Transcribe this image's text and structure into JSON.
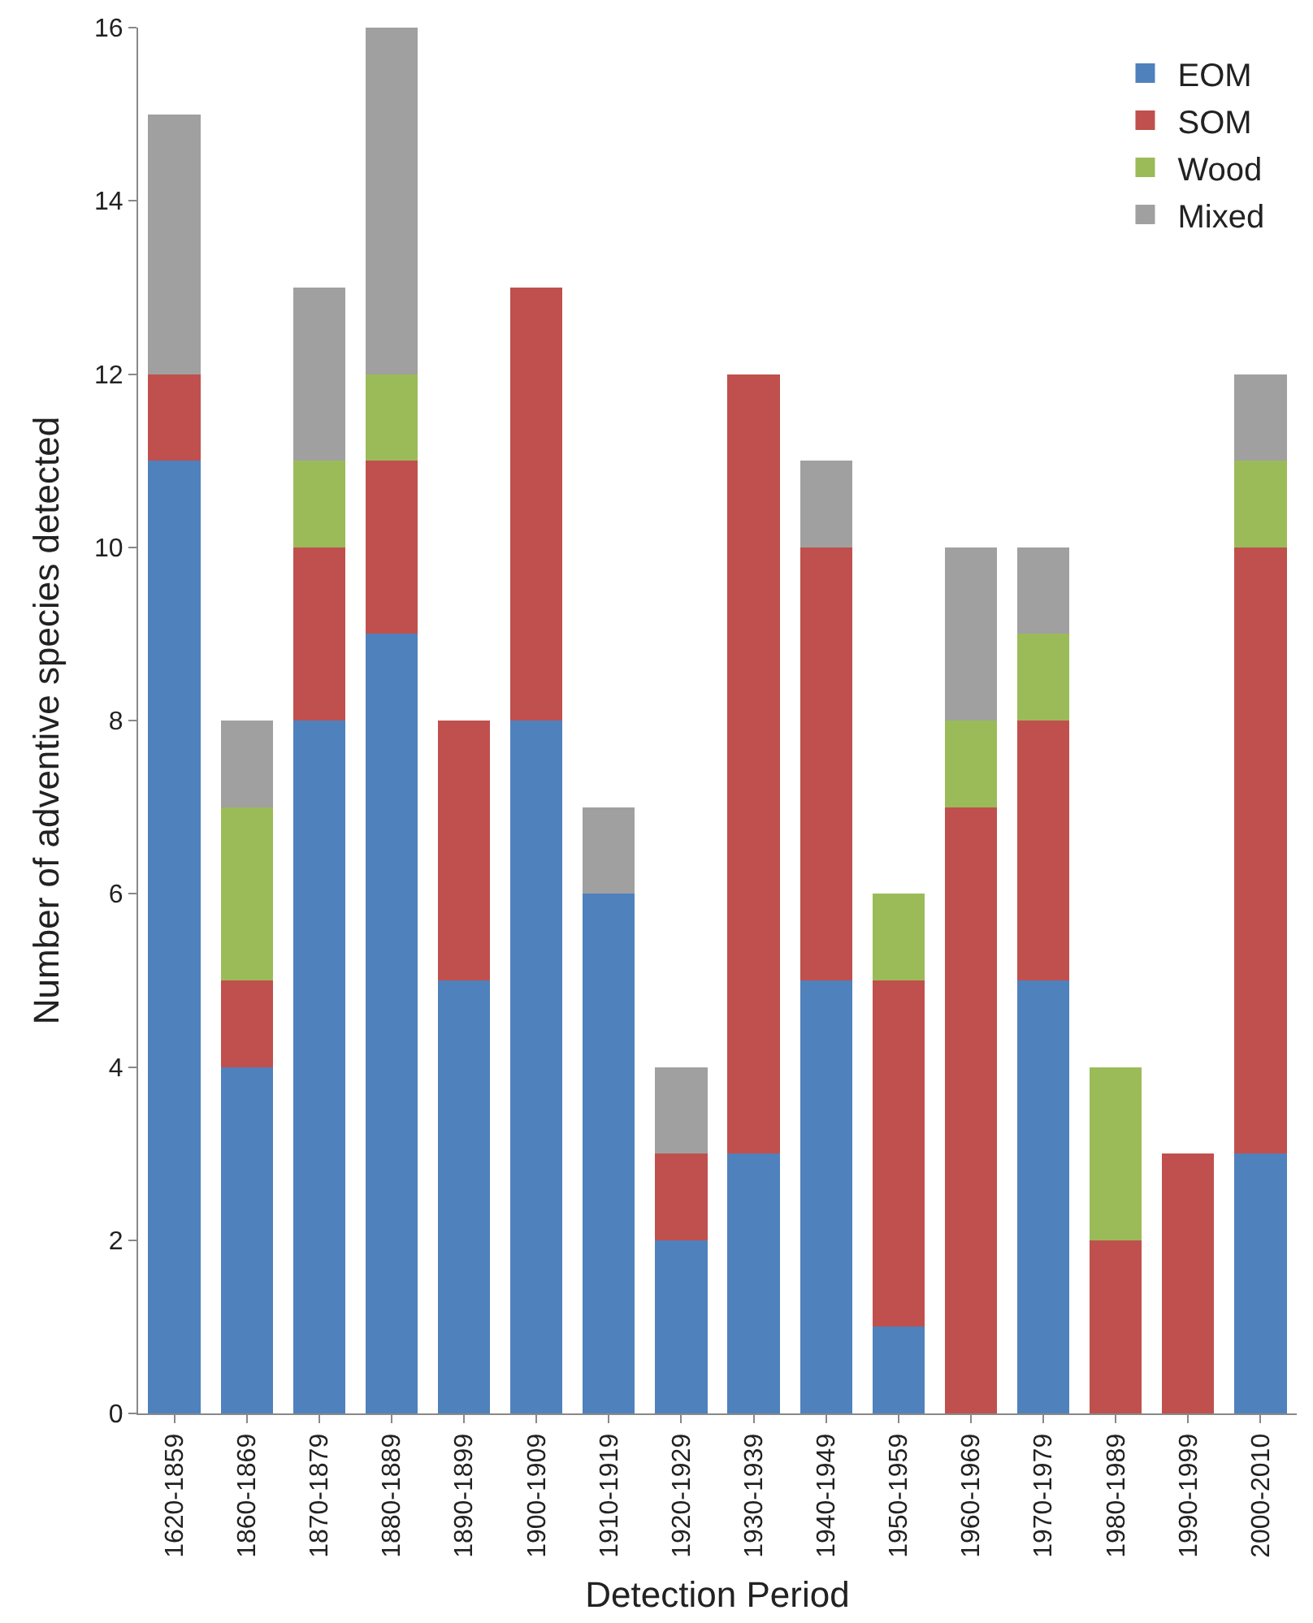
{
  "chart_data": {
    "type": "bar",
    "stacked": true,
    "xlabel": "Detection Period",
    "ylabel": "Number of adventive species detected",
    "categories": [
      "1620-1859",
      "1860-1869",
      "1870-1879",
      "1880-1889",
      "1890-1899",
      "1900-1909",
      "1910-1919",
      "1920-1929",
      "1930-1939",
      "1940-1949",
      "1950-1959",
      "1960-1969",
      "1970-1979",
      "1980-1989",
      "1990-1999",
      "2000-2010"
    ],
    "series": [
      {
        "name": "EOM",
        "color": "#4f81bd",
        "values": [
          11,
          4,
          8,
          9,
          5,
          8,
          6,
          2,
          3,
          5,
          1,
          0,
          5,
          0,
          0,
          3
        ]
      },
      {
        "name": "SOM",
        "color": "#c0504d",
        "values": [
          1,
          1,
          2,
          2,
          3,
          5,
          0,
          1,
          9,
          5,
          4,
          7,
          3,
          2,
          3,
          7
        ]
      },
      {
        "name": "Wood",
        "color": "#9bbb59",
        "values": [
          0,
          2,
          1,
          1,
          0,
          0,
          0,
          0,
          0,
          0,
          1,
          1,
          1,
          2,
          0,
          1
        ]
      },
      {
        "name": "Mixed",
        "color": "#a0a0a0",
        "values": [
          3,
          1,
          2,
          4,
          0,
          0,
          1,
          1,
          0,
          1,
          0,
          2,
          1,
          0,
          0,
          1
        ]
      }
    ],
    "ylim": [
      0,
      16
    ],
    "yticks": [
      0,
      2,
      4,
      6,
      8,
      10,
      12,
      14,
      16
    ],
    "legend": "top right"
  }
}
